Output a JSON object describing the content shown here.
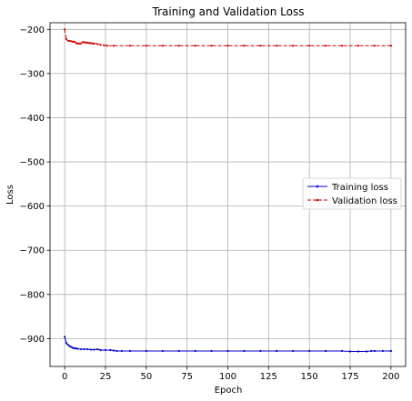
{
  "chart_data": {
    "type": "line",
    "title": "Training and Validation Loss",
    "xlabel": "Epoch",
    "ylabel": "Loss",
    "xlim": [
      -9,
      209
    ],
    "ylim": [
      -963,
      -185
    ],
    "xticks": [
      0,
      25,
      50,
      75,
      100,
      125,
      150,
      175,
      200
    ],
    "yticks": [
      -200,
      -300,
      -400,
      -500,
      -600,
      -700,
      -800,
      -900
    ],
    "grid": true,
    "legend_position": "center-right",
    "series": [
      {
        "name": "Training loss",
        "color": "#0000cc",
        "linestyle": "solid",
        "marker": "dot",
        "points": [
          [
            0,
            -896
          ],
          [
            1,
            -910
          ],
          [
            2,
            -914
          ],
          [
            3,
            -917
          ],
          [
            4,
            -919
          ],
          [
            5,
            -921
          ],
          [
            6,
            -922
          ],
          [
            7,
            -922
          ],
          [
            8,
            -923
          ],
          [
            10,
            -924
          ],
          [
            12,
            -924
          ],
          [
            14,
            -924
          ],
          [
            16,
            -925
          ],
          [
            18,
            -925
          ],
          [
            20,
            -924
          ],
          [
            22,
            -926
          ],
          [
            25,
            -926
          ],
          [
            28,
            -926
          ],
          [
            30,
            -927
          ],
          [
            32,
            -928
          ],
          [
            35,
            -928
          ],
          [
            40,
            -928
          ],
          [
            50,
            -928
          ],
          [
            60,
            -928
          ],
          [
            70,
            -928
          ],
          [
            80,
            -928
          ],
          [
            90,
            -928
          ],
          [
            100,
            -928
          ],
          [
            110,
            -928
          ],
          [
            120,
            -928
          ],
          [
            130,
            -928
          ],
          [
            140,
            -928
          ],
          [
            150,
            -928
          ],
          [
            160,
            -928
          ],
          [
            170,
            -928
          ],
          [
            175,
            -929
          ],
          [
            180,
            -929
          ],
          [
            185,
            -929
          ],
          [
            188,
            -928
          ],
          [
            190,
            -928
          ],
          [
            195,
            -928
          ],
          [
            200,
            -928
          ]
        ]
      },
      {
        "name": "Validation loss",
        "color": "#cc0000",
        "linestyle": "dashed",
        "marker": "dot",
        "points": [
          [
            0,
            -200
          ],
          [
            1,
            -222
          ],
          [
            2,
            -226
          ],
          [
            3,
            -226
          ],
          [
            4,
            -227
          ],
          [
            5,
            -228
          ],
          [
            6,
            -228
          ],
          [
            7,
            -231
          ],
          [
            8,
            -232
          ],
          [
            9,
            -232
          ],
          [
            10,
            -232
          ],
          [
            11,
            -229
          ],
          [
            12,
            -229
          ],
          [
            13,
            -230
          ],
          [
            14,
            -230
          ],
          [
            15,
            -231
          ],
          [
            16,
            -231
          ],
          [
            17,
            -232
          ],
          [
            18,
            -232
          ],
          [
            20,
            -233
          ],
          [
            22,
            -235
          ],
          [
            24,
            -236
          ],
          [
            26,
            -237
          ],
          [
            30,
            -237
          ],
          [
            40,
            -237
          ],
          [
            50,
            -237
          ],
          [
            60,
            -237
          ],
          [
            70,
            -237
          ],
          [
            80,
            -237
          ],
          [
            90,
            -237
          ],
          [
            100,
            -237
          ],
          [
            110,
            -237
          ],
          [
            120,
            -237
          ],
          [
            130,
            -237
          ],
          [
            140,
            -237
          ],
          [
            150,
            -237
          ],
          [
            160,
            -237
          ],
          [
            170,
            -237
          ],
          [
            180,
            -237
          ],
          [
            190,
            -237
          ],
          [
            200,
            -237
          ]
        ]
      }
    ]
  }
}
